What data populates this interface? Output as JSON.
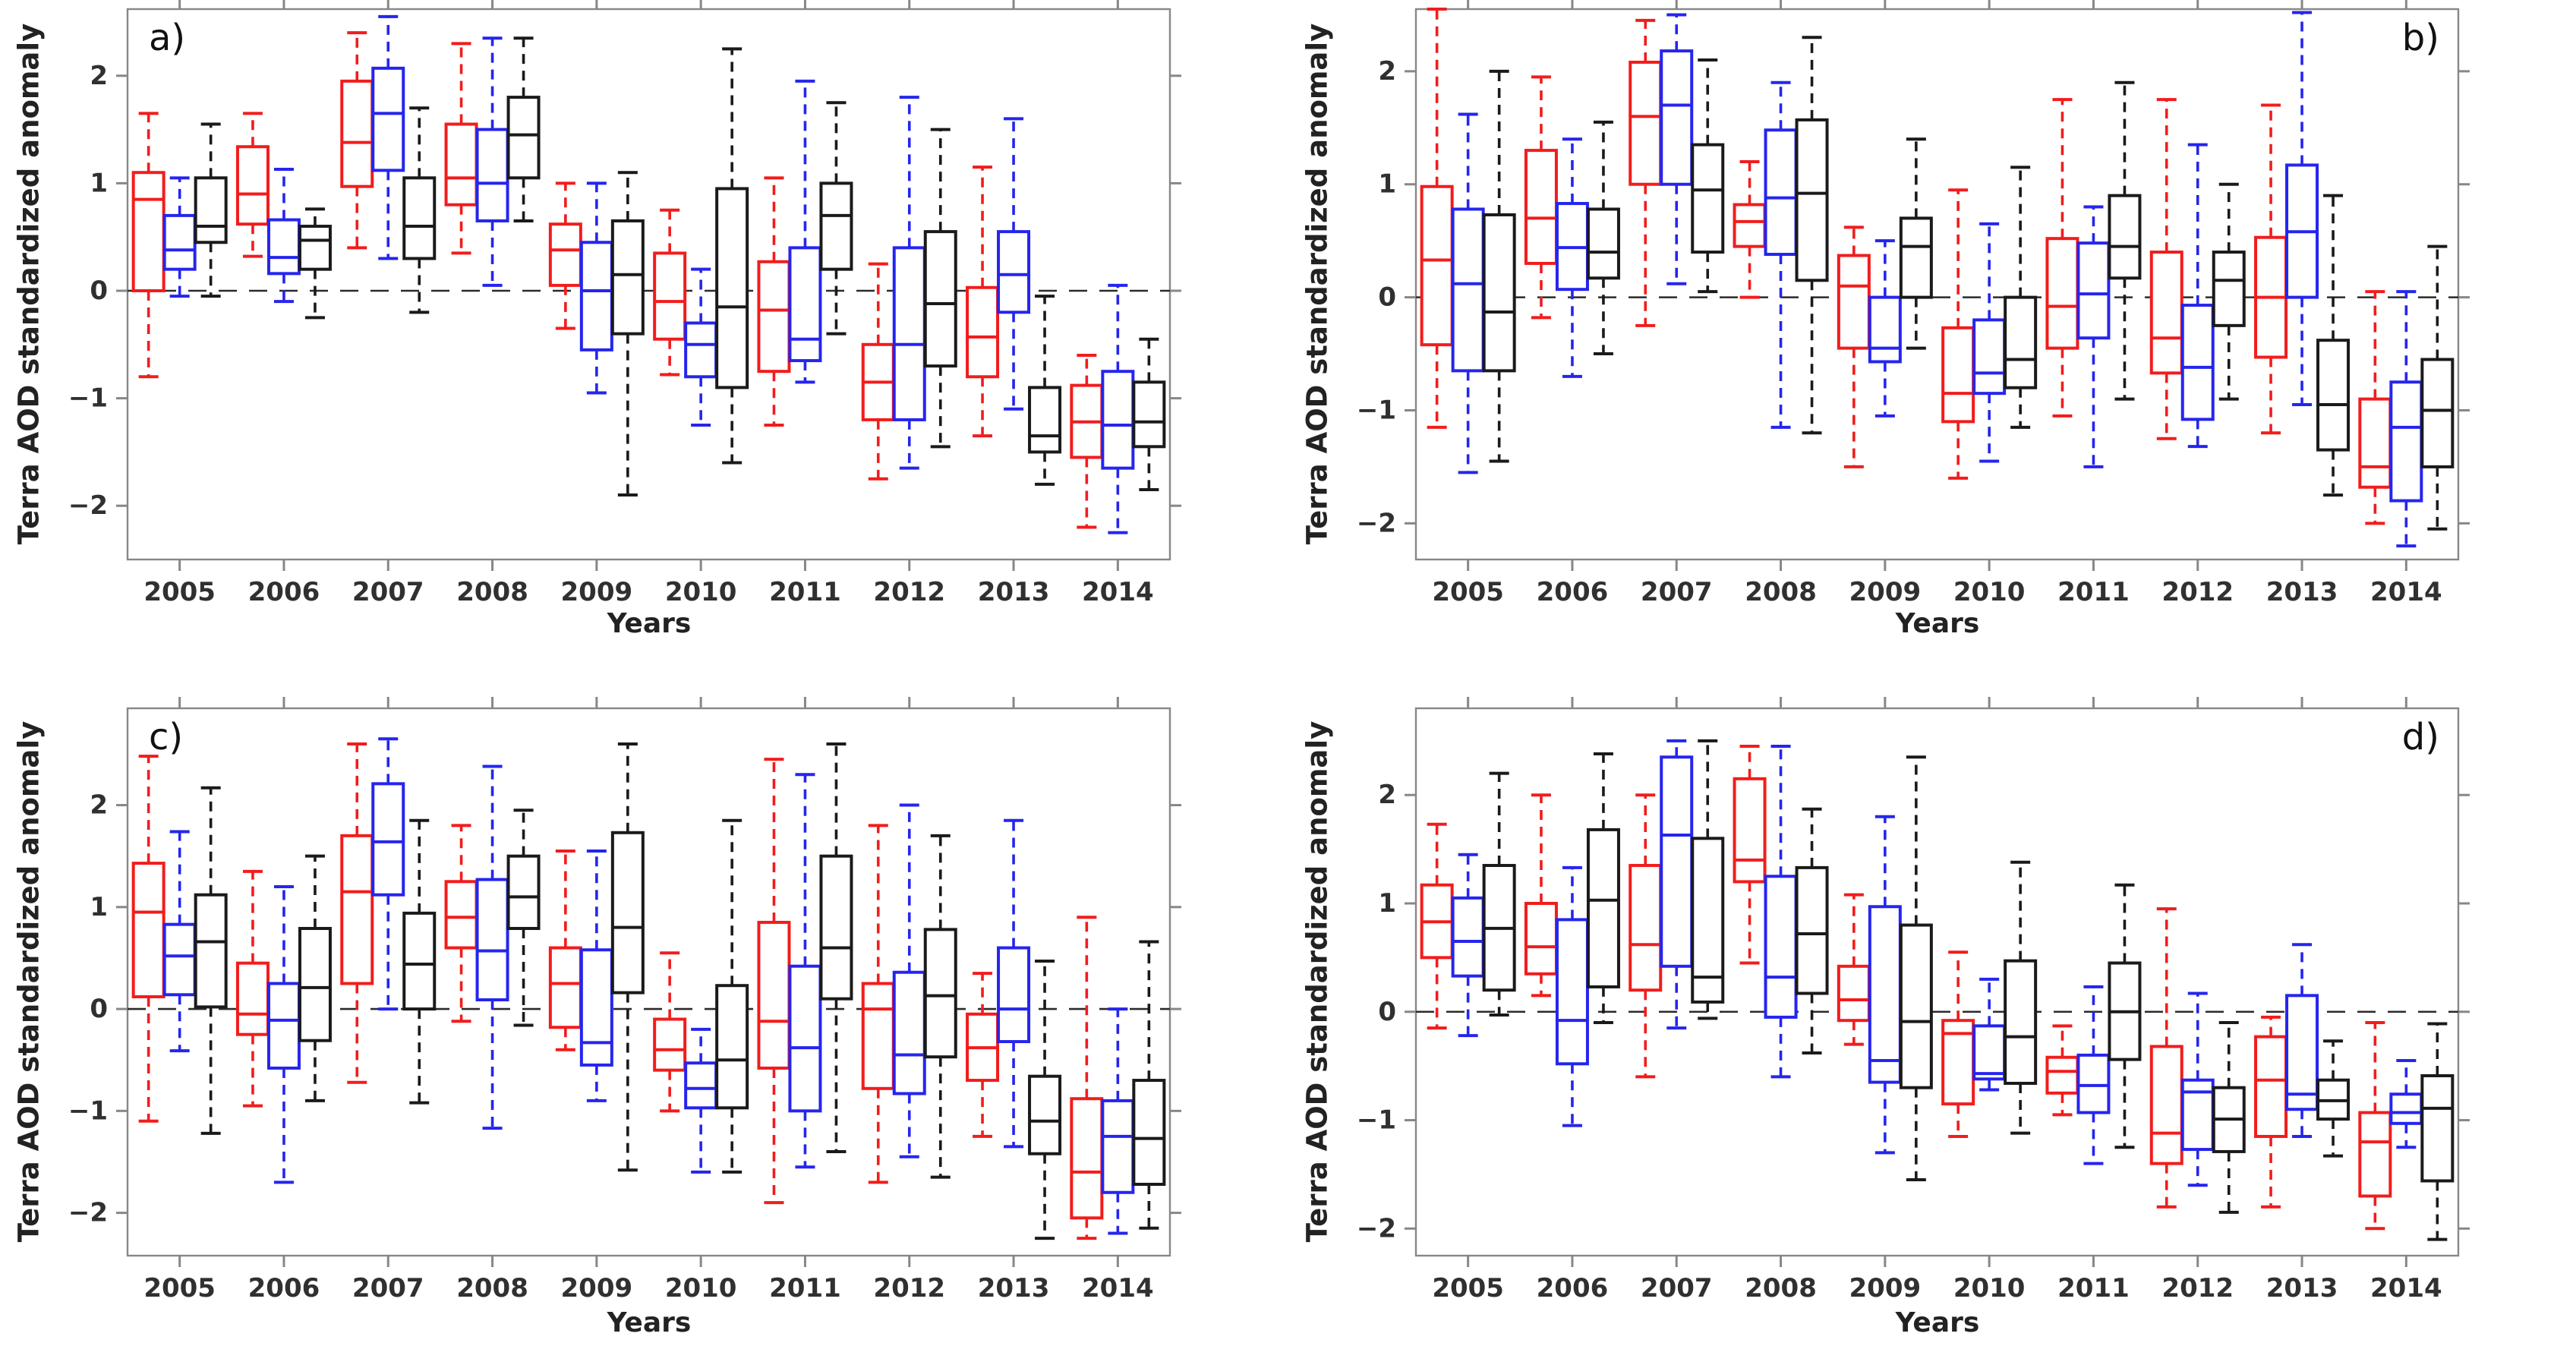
{
  "figure": {
    "ylabel": "Terra AOD standardized anomaly",
    "xlabel": "Years",
    "background": "#ffffff",
    "axis_color": "#878787",
    "tick_text_color": "#303030",
    "zero_line_color": "#2b2b2b"
  },
  "chart_data": [
    {
      "type": "boxplot",
      "panel_label": "a)",
      "label_corner": "top-left",
      "xlabel": "Years",
      "ylabel": "Terra AOD standardized anomaly",
      "categories": [
        "2005",
        "2006",
        "2007",
        "2008",
        "2009",
        "2010",
        "2011",
        "2012",
        "2013",
        "2014"
      ],
      "yticks": [
        -2,
        -1,
        0,
        1,
        2
      ],
      "ylim": [
        -2.5,
        2.62
      ],
      "zero_line": true,
      "grid": false,
      "legend": "none",
      "series": [
        {
          "name": "red",
          "color": "#f21c1c",
          "boxes": [
            [
              -0.8,
              0.0,
              0.85,
              1.1,
              1.65
            ],
            [
              0.32,
              0.62,
              0.9,
              1.34,
              1.65
            ],
            [
              0.4,
              0.97,
              1.38,
              1.95,
              2.4
            ],
            [
              0.35,
              0.8,
              1.05,
              1.55,
              2.3
            ],
            [
              -0.35,
              0.05,
              0.38,
              0.62,
              1.0
            ],
            [
              -0.78,
              -0.45,
              -0.1,
              0.35,
              0.75
            ],
            [
              -1.25,
              -0.75,
              -0.18,
              0.27,
              1.05
            ],
            [
              -1.75,
              -1.2,
              -0.85,
              -0.5,
              0.25
            ],
            [
              -1.35,
              -0.8,
              -0.43,
              0.03,
              1.15
            ],
            [
              -2.2,
              -1.55,
              -1.22,
              -0.88,
              -0.6
            ]
          ]
        },
        {
          "name": "blue",
          "color": "#2525ee",
          "boxes": [
            [
              -0.05,
              0.2,
              0.38,
              0.7,
              1.05
            ],
            [
              -0.1,
              0.16,
              0.31,
              0.66,
              1.13
            ],
            [
              0.3,
              1.12,
              1.65,
              2.07,
              2.55
            ],
            [
              0.05,
              0.65,
              1.0,
              1.5,
              2.35
            ],
            [
              -0.95,
              -0.55,
              0.0,
              0.45,
              1.0
            ],
            [
              -1.25,
              -0.8,
              -0.5,
              -0.3,
              0.2
            ],
            [
              -0.85,
              -0.65,
              -0.45,
              0.4,
              1.95
            ],
            [
              -1.65,
              -1.2,
              -0.5,
              0.4,
              1.8
            ],
            [
              -1.1,
              -0.2,
              0.15,
              0.55,
              1.6
            ],
            [
              -2.25,
              -1.65,
              -1.25,
              -0.75,
              0.05
            ]
          ]
        },
        {
          "name": "black",
          "color": "#1a1a1a",
          "boxes": [
            [
              -0.05,
              0.45,
              0.6,
              1.05,
              1.55
            ],
            [
              -0.25,
              0.2,
              0.47,
              0.6,
              0.76
            ],
            [
              -0.2,
              0.3,
              0.6,
              1.05,
              1.7
            ],
            [
              0.65,
              1.05,
              1.45,
              1.8,
              2.35
            ],
            [
              -1.9,
              -0.4,
              0.15,
              0.65,
              1.1
            ],
            [
              -1.6,
              -0.9,
              -0.15,
              0.95,
              2.25
            ],
            [
              -0.4,
              0.2,
              0.7,
              1.0,
              1.75
            ],
            [
              -1.45,
              -0.7,
              -0.12,
              0.55,
              1.5
            ],
            [
              -1.8,
              -1.5,
              -1.35,
              -0.9,
              -0.05
            ],
            [
              -1.85,
              -1.45,
              -1.22,
              -0.85,
              -0.45
            ]
          ]
        }
      ]
    },
    {
      "type": "boxplot",
      "panel_label": "b)",
      "label_corner": "top-right",
      "xlabel": "Years",
      "ylabel": "Terra AOD standardized anomaly",
      "categories": [
        "2005",
        "2006",
        "2007",
        "2008",
        "2009",
        "2010",
        "2011",
        "2012",
        "2013",
        "2014"
      ],
      "yticks": [
        -2,
        -1,
        0,
        1,
        2
      ],
      "ylim": [
        -2.32,
        2.55
      ],
      "zero_line": true,
      "grid": false,
      "legend": "none",
      "series": [
        {
          "name": "red",
          "color": "#f21c1c",
          "boxes": [
            [
              -1.15,
              -0.42,
              0.33,
              0.98,
              2.55
            ],
            [
              -0.18,
              0.3,
              0.7,
              1.3,
              1.95
            ],
            [
              -0.25,
              1.0,
              1.6,
              2.08,
              2.45
            ],
            [
              0.0,
              0.45,
              0.67,
              0.82,
              1.2
            ],
            [
              -1.5,
              -0.45,
              0.1,
              0.37,
              0.62
            ],
            [
              -1.6,
              -1.1,
              -0.85,
              -0.27,
              0.95
            ],
            [
              -1.05,
              -0.45,
              -0.08,
              0.52,
              1.75
            ],
            [
              -1.25,
              -0.67,
              -0.36,
              0.4,
              1.75
            ],
            [
              -1.2,
              -0.53,
              0.0,
              0.53,
              1.7
            ],
            [
              -2.0,
              -1.68,
              -1.5,
              -0.9,
              0.05
            ]
          ]
        },
        {
          "name": "blue",
          "color": "#2525ee",
          "boxes": [
            [
              -1.55,
              -0.65,
              0.12,
              0.78,
              1.62
            ],
            [
              -0.7,
              0.07,
              0.44,
              0.83,
              1.4
            ],
            [
              0.12,
              1.0,
              1.7,
              2.18,
              2.5
            ],
            [
              -1.15,
              0.38,
              0.88,
              1.48,
              1.9
            ],
            [
              -1.05,
              -0.57,
              -0.45,
              0.0,
              0.5
            ],
            [
              -1.45,
              -0.85,
              -0.67,
              -0.2,
              0.65
            ],
            [
              -1.5,
              -0.36,
              0.03,
              0.48,
              0.8
            ],
            [
              -1.32,
              -1.08,
              -0.62,
              -0.07,
              1.35
            ],
            [
              -0.95,
              0.0,
              0.58,
              1.17,
              2.52
            ],
            [
              -2.2,
              -1.8,
              -1.15,
              -0.75,
              0.05
            ]
          ]
        },
        {
          "name": "black",
          "color": "#1a1a1a",
          "boxes": [
            [
              -1.45,
              -0.65,
              -0.13,
              0.73,
              2.0
            ],
            [
              -0.5,
              0.17,
              0.4,
              0.78,
              1.55
            ],
            [
              0.05,
              0.4,
              0.95,
              1.35,
              2.1
            ],
            [
              -1.2,
              0.15,
              0.92,
              1.57,
              2.3
            ],
            [
              -0.45,
              0.0,
              0.45,
              0.7,
              1.4
            ],
            [
              -1.15,
              -0.8,
              -0.55,
              0.0,
              1.15
            ],
            [
              -0.9,
              0.17,
              0.45,
              0.9,
              1.9
            ],
            [
              -0.9,
              -0.25,
              0.15,
              0.4,
              1.0
            ],
            [
              -1.75,
              -1.35,
              -0.95,
              -0.38,
              0.9
            ],
            [
              -2.05,
              -1.5,
              -1.0,
              -0.55,
              0.45
            ]
          ]
        }
      ]
    },
    {
      "type": "boxplot",
      "panel_label": "c)",
      "label_corner": "top-left",
      "xlabel": "Years",
      "ylabel": "Terra AOD standardized anomaly",
      "categories": [
        "2005",
        "2006",
        "2007",
        "2008",
        "2009",
        "2010",
        "2011",
        "2012",
        "2013",
        "2014"
      ],
      "yticks": [
        -2,
        -1,
        0,
        1,
        2
      ],
      "ylim": [
        -2.42,
        2.95
      ],
      "zero_line": true,
      "grid": false,
      "legend": "none",
      "series": [
        {
          "name": "red",
          "color": "#f21c1c",
          "boxes": [
            [
              -1.1,
              0.12,
              0.95,
              1.43,
              2.48
            ],
            [
              -0.95,
              -0.25,
              -0.05,
              0.45,
              1.35
            ],
            [
              -0.72,
              0.25,
              1.15,
              1.7,
              2.6
            ],
            [
              -0.12,
              0.6,
              0.9,
              1.25,
              1.8
            ],
            [
              -0.4,
              -0.18,
              0.25,
              0.6,
              1.55
            ],
            [
              -1.0,
              -0.6,
              -0.4,
              -0.1,
              0.55
            ],
            [
              -1.9,
              -0.58,
              -0.12,
              0.85,
              2.45
            ],
            [
              -1.7,
              -0.78,
              0.0,
              0.25,
              1.8
            ],
            [
              -1.25,
              -0.7,
              -0.38,
              -0.05,
              0.35
            ],
            [
              -2.25,
              -2.05,
              -1.6,
              -0.88,
              0.9
            ]
          ]
        },
        {
          "name": "blue",
          "color": "#2525ee",
          "boxes": [
            [
              -0.41,
              0.14,
              0.52,
              0.83,
              1.74
            ],
            [
              -1.7,
              -0.58,
              -0.11,
              0.25,
              1.2
            ],
            [
              0.0,
              1.12,
              1.64,
              2.21,
              2.65
            ],
            [
              -1.17,
              0.09,
              0.57,
              1.27,
              2.38
            ],
            [
              -0.9,
              -0.55,
              -0.33,
              0.58,
              1.55
            ],
            [
              -1.6,
              -0.97,
              -0.78,
              -0.53,
              -0.2
            ],
            [
              -1.55,
              -1.0,
              -0.38,
              0.42,
              2.3
            ],
            [
              -1.45,
              -0.83,
              -0.45,
              0.36,
              2.0
            ],
            [
              -1.35,
              -0.32,
              0.0,
              0.6,
              1.85
            ],
            [
              -2.2,
              -1.8,
              -1.25,
              -0.9,
              0.0
            ]
          ]
        },
        {
          "name": "black",
          "color": "#1a1a1a",
          "boxes": [
            [
              -1.22,
              0.02,
              0.66,
              1.12,
              2.17
            ],
            [
              -0.9,
              -0.31,
              0.21,
              0.79,
              1.5
            ],
            [
              -0.92,
              0.0,
              0.44,
              0.94,
              1.85
            ],
            [
              -0.16,
              0.79,
              1.1,
              1.5,
              1.95
            ],
            [
              -1.58,
              0.16,
              0.8,
              1.73,
              2.6
            ],
            [
              -1.6,
              -0.97,
              -0.5,
              0.23,
              1.85
            ],
            [
              -1.4,
              0.1,
              0.6,
              1.5,
              2.6
            ],
            [
              -1.65,
              -0.47,
              0.13,
              0.78,
              1.7
            ],
            [
              -2.25,
              -1.42,
              -1.1,
              -0.66,
              0.47
            ],
            [
              -2.15,
              -1.72,
              -1.27,
              -0.7,
              0.66
            ]
          ]
        }
      ]
    },
    {
      "type": "boxplot",
      "panel_label": "d)",
      "label_corner": "top-right",
      "xlabel": "Years",
      "ylabel": "Terra AOD standardized anomaly",
      "categories": [
        "2005",
        "2006",
        "2007",
        "2008",
        "2009",
        "2010",
        "2011",
        "2012",
        "2013",
        "2014"
      ],
      "yticks": [
        -2,
        -1,
        0,
        1,
        2
      ],
      "ylim": [
        -2.25,
        2.8
      ],
      "zero_line": true,
      "grid": false,
      "legend": "none",
      "series": [
        {
          "name": "red",
          "color": "#f21c1c",
          "boxes": [
            [
              -0.15,
              0.5,
              0.83,
              1.17,
              1.73
            ],
            [
              0.15,
              0.35,
              0.6,
              1.0,
              2.0
            ],
            [
              -0.6,
              0.2,
              0.62,
              1.35,
              2.0
            ],
            [
              0.45,
              1.2,
              1.4,
              2.15,
              2.45
            ],
            [
              -0.3,
              -0.08,
              0.11,
              0.42,
              1.08
            ],
            [
              -1.15,
              -0.85,
              -0.2,
              -0.08,
              0.55
            ],
            [
              -0.95,
              -0.75,
              -0.55,
              -0.42,
              -0.13
            ],
            [
              -1.8,
              -1.4,
              -1.12,
              -0.32,
              0.95
            ],
            [
              -1.8,
              -1.15,
              -0.63,
              -0.23,
              -0.05
            ],
            [
              -2.0,
              -1.7,
              -1.2,
              -0.93,
              -0.1
            ]
          ]
        },
        {
          "name": "blue",
          "color": "#2525ee",
          "boxes": [
            [
              -0.22,
              0.33,
              0.65,
              1.05,
              1.45
            ],
            [
              -1.05,
              -0.48,
              -0.08,
              0.85,
              1.33
            ],
            [
              -0.15,
              0.42,
              1.63,
              2.35,
              2.5
            ],
            [
              -0.6,
              -0.05,
              0.32,
              1.25,
              2.45
            ],
            [
              -1.3,
              -0.65,
              -0.45,
              0.97,
              1.8
            ],
            [
              -0.72,
              -0.62,
              -0.57,
              -0.13,
              0.3
            ],
            [
              -1.4,
              -0.93,
              -0.68,
              -0.4,
              0.23
            ],
            [
              -1.6,
              -1.27,
              -0.74,
              -0.63,
              0.17
            ],
            [
              -1.15,
              -0.9,
              -0.76,
              0.15,
              0.62
            ],
            [
              -1.25,
              -1.03,
              -0.93,
              -0.76,
              -0.45
            ]
          ]
        },
        {
          "name": "black",
          "color": "#1a1a1a",
          "boxes": [
            [
              -0.03,
              0.2,
              0.77,
              1.35,
              2.2
            ],
            [
              -0.1,
              0.23,
              1.03,
              1.68,
              2.38
            ],
            [
              -0.06,
              0.09,
              0.32,
              1.6,
              2.5
            ],
            [
              -0.38,
              0.17,
              0.72,
              1.33,
              1.87
            ],
            [
              -1.55,
              -0.7,
              -0.09,
              0.8,
              2.35
            ],
            [
              -1.12,
              -0.66,
              -0.23,
              0.47,
              1.38
            ],
            [
              -1.25,
              -0.44,
              0.0,
              0.45,
              1.17
            ],
            [
              -1.85,
              -1.29,
              -0.99,
              -0.7,
              -0.1
            ],
            [
              -1.33,
              -0.99,
              -0.82,
              -0.63,
              -0.27
            ],
            [
              -2.1,
              -1.56,
              -0.89,
              -0.59,
              -0.11
            ]
          ]
        }
      ]
    }
  ]
}
